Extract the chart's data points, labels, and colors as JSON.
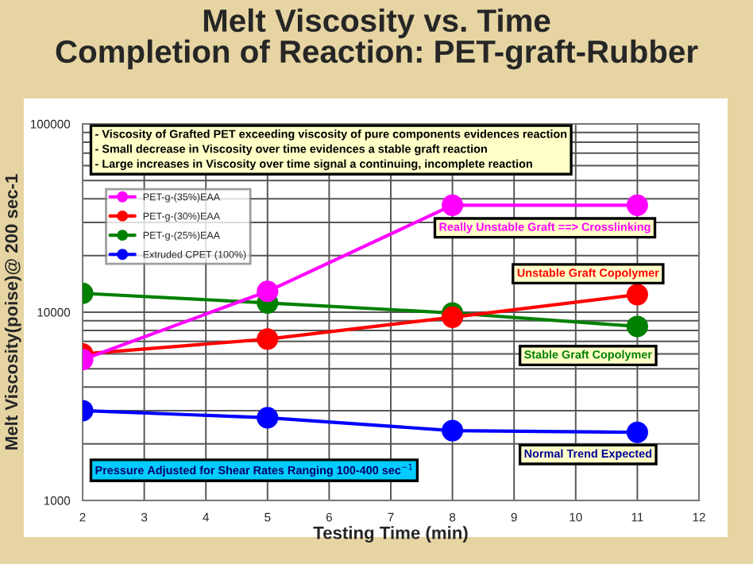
{
  "chart_data": {
    "type": "line",
    "title": "Melt Viscosity vs. Time\nCompletion of Reaction: PET-graft-Rubber",
    "xlabel": "Testing Time (min)",
    "ylabel": "Melt Viscosity(poise)@ 200 sec-1",
    "x": [
      2,
      5,
      8,
      11
    ],
    "series": [
      {
        "name": "PET-g-(35%)EAA",
        "color": "#ff00ff",
        "values": [
          5600,
          12900,
          37000,
          37000
        ]
      },
      {
        "name": "PET-g-(30%)EAA",
        "color": "#ff0000",
        "values": [
          6000,
          7200,
          9400,
          12400
        ]
      },
      {
        "name": "PET-g-(25%)EAA",
        "color": "#008000",
        "values": [
          12600,
          11200,
          9900,
          8400
        ]
      },
      {
        "name": "Extruded CPET (100%)",
        "color": "#0000ff",
        "values": [
          3000,
          2750,
          2350,
          2300
        ]
      }
    ],
    "log": true,
    "xlim": [
      2,
      12
    ],
    "xticks": [
      2,
      3,
      4,
      5,
      6,
      7,
      8,
      9,
      10,
      11,
      12
    ],
    "ylim": [
      1000,
      100000
    ],
    "yticks": [
      1000,
      10000,
      100000
    ],
    "grid": true,
    "legend": "top left",
    "marker": "circle",
    "line_style": "solid",
    "annotations": [
      "- Viscosity of Grafted PET exceeding viscosity of pure components evidences reaction\n- Small decrease in Viscosity over time evidences a stable graft reaction\n- Large increases in Viscosity over time signal a continuing, incomplete reaction",
      "Really Unstable Graft ==> Crosslinking",
      "Unstable Graft Copolymer",
      "Stable Graft Copolymer",
      "Normal Trend Expected",
      "Pressure Adjusted for Shear Rates Ranging 100-400 sec$^{−1}$"
    ]
  }
}
